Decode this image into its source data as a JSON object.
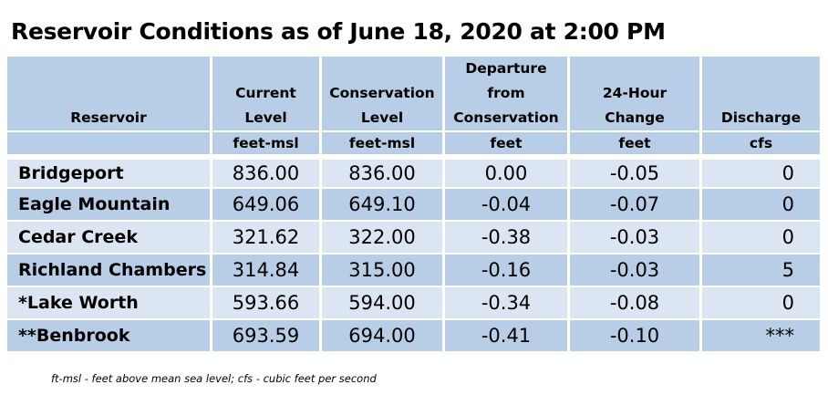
{
  "title": "Reservoir Conditions as of June 18, 2020 at 2:00 PM",
  "columns": [
    {
      "header_lines": [
        "",
        "",
        "",
        "Reservoir"
      ],
      "unit": ""
    },
    {
      "header_lines": [
        "",
        "Current",
        "Level",
        ""
      ],
      "unit": "feet-msl"
    },
    {
      "header_lines": [
        "",
        "Conservation",
        "Level",
        ""
      ],
      "unit": "feet-msl"
    },
    {
      "header_lines": [
        "Departure",
        "from",
        "Conservation",
        ""
      ],
      "unit": "feet"
    },
    {
      "header_lines": [
        "",
        "24-Hour",
        "Change",
        ""
      ],
      "unit": "feet"
    },
    {
      "header_lines": [
        "",
        "",
        "Discharge",
        ""
      ],
      "unit": "cfs"
    }
  ],
  "rows": [
    {
      "name": "Bridgeport",
      "current": "836.00",
      "conservation": "836.00",
      "departure": "0.00",
      "change": "-0.05",
      "discharge": "0"
    },
    {
      "name": "Eagle Mountain",
      "current": "649.06",
      "conservation": "649.10",
      "departure": "-0.04",
      "change": "-0.07",
      "discharge": "0"
    },
    {
      "name": "Cedar Creek",
      "current": "321.62",
      "conservation": "322.00",
      "departure": "-0.38",
      "change": "-0.03",
      "discharge": "0"
    },
    {
      "name": "Richland Chambers",
      "current": "314.84",
      "conservation": "315.00",
      "departure": "-0.16",
      "change": "-0.03",
      "discharge": "5"
    },
    {
      "name": "*Lake Worth",
      "current": "593.66",
      "conservation": "594.00",
      "departure": "-0.34",
      "change": "-0.08",
      "discharge": "0"
    },
    {
      "name": "**Benbrook",
      "current": "693.59",
      "conservation": "694.00",
      "departure": "-0.41",
      "change": "-0.10",
      "discharge": "***"
    }
  ],
  "footnote": "ft-msl - feet above mean sea level; cfs - cubic feet per second",
  "colors": {
    "header_bg": "#b7cee6",
    "row_light": "#dbe6f2",
    "row_dark": "#b7cee6"
  }
}
